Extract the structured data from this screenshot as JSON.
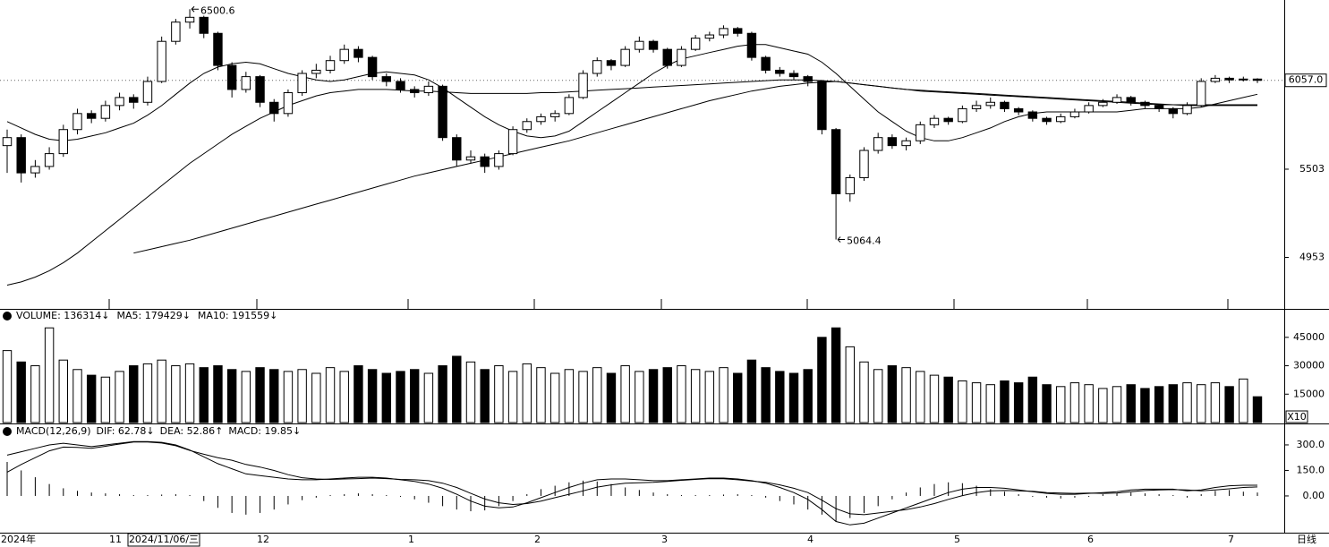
{
  "chart_data": {
    "type": "candlestick",
    "candles": [
      [
        5650,
        5750,
        5480,
        5700
      ],
      [
        5700,
        5720,
        5420,
        5480
      ],
      [
        5480,
        5560,
        5450,
        5520
      ],
      [
        5520,
        5640,
        5500,
        5600
      ],
      [
        5600,
        5780,
        5580,
        5750
      ],
      [
        5750,
        5880,
        5720,
        5850
      ],
      [
        5850,
        5870,
        5790,
        5820
      ],
      [
        5820,
        5930,
        5800,
        5900
      ],
      [
        5900,
        5980,
        5870,
        5950
      ],
      [
        5950,
        5970,
        5880,
        5920
      ],
      [
        5920,
        6080,
        5900,
        6050
      ],
      [
        6050,
        6330,
        6040,
        6300
      ],
      [
        6300,
        6440,
        6280,
        6420
      ],
      [
        6420,
        6500.6,
        6380,
        6450
      ],
      [
        6450,
        6460,
        6320,
        6350
      ],
      [
        6350,
        6360,
        6120,
        6150
      ],
      [
        6150,
        6170,
        5950,
        6000
      ],
      [
        6000,
        6110,
        5980,
        6080
      ],
      [
        6080,
        6090,
        5890,
        5920
      ],
      [
        5920,
        5940,
        5800,
        5850
      ],
      [
        5850,
        6000,
        5830,
        5980
      ],
      [
        5980,
        6120,
        5960,
        6100
      ],
      [
        6100,
        6160,
        6070,
        6120
      ],
      [
        6120,
        6210,
        6100,
        6180
      ],
      [
        6180,
        6280,
        6160,
        6250
      ],
      [
        6250,
        6270,
        6170,
        6200
      ],
      [
        6200,
        6210,
        6060,
        6080
      ],
      [
        6080,
        6100,
        6020,
        6050
      ],
      [
        6050,
        6070,
        5980,
        6000
      ],
      [
        6000,
        6020,
        5950,
        5980
      ],
      [
        5980,
        6050,
        5960,
        6020
      ],
      [
        6020,
        6030,
        5680,
        5700
      ],
      [
        5700,
        5720,
        5520,
        5560
      ],
      [
        5560,
        5620,
        5540,
        5580
      ],
      [
        5580,
        5600,
        5480,
        5520
      ],
      [
        5520,
        5620,
        5500,
        5600
      ],
      [
        5600,
        5770,
        5590,
        5750
      ],
      [
        5750,
        5820,
        5730,
        5800
      ],
      [
        5800,
        5850,
        5780,
        5830
      ],
      [
        5830,
        5870,
        5800,
        5850
      ],
      [
        5850,
        5970,
        5840,
        5950
      ],
      [
        5950,
        6120,
        5940,
        6100
      ],
      [
        6100,
        6200,
        6080,
        6180
      ],
      [
        6180,
        6190,
        6120,
        6150
      ],
      [
        6150,
        6270,
        6140,
        6250
      ],
      [
        6250,
        6330,
        6230,
        6300
      ],
      [
        6300,
        6310,
        6230,
        6250
      ],
      [
        6250,
        6260,
        6130,
        6150
      ],
      [
        6150,
        6270,
        6140,
        6250
      ],
      [
        6250,
        6340,
        6240,
        6320
      ],
      [
        6320,
        6360,
        6300,
        6340
      ],
      [
        6340,
        6400,
        6320,
        6380
      ],
      [
        6380,
        6390,
        6330,
        6350
      ],
      [
        6350,
        6360,
        6180,
        6200
      ],
      [
        6200,
        6210,
        6100,
        6120
      ],
      [
        6120,
        6140,
        6080,
        6100
      ],
      [
        6100,
        6120,
        6060,
        6080
      ],
      [
        6080,
        6090,
        6020,
        6050
      ],
      [
        6050,
        6060,
        5720,
        5750
      ],
      [
        5750,
        5760,
        5064.4,
        5350
      ],
      [
        5350,
        5470,
        5300,
        5450
      ],
      [
        5450,
        5640,
        5430,
        5620
      ],
      [
        5620,
        5730,
        5600,
        5700
      ],
      [
        5700,
        5720,
        5630,
        5650
      ],
      [
        5650,
        5700,
        5620,
        5680
      ],
      [
        5680,
        5800,
        5660,
        5780
      ],
      [
        5780,
        5840,
        5760,
        5820
      ],
      [
        5820,
        5830,
        5780,
        5800
      ],
      [
        5800,
        5900,
        5790,
        5880
      ],
      [
        5880,
        5930,
        5860,
        5900
      ],
      [
        5900,
        5950,
        5880,
        5920
      ],
      [
        5920,
        5930,
        5860,
        5880
      ],
      [
        5880,
        5890,
        5840,
        5860
      ],
      [
        5860,
        5870,
        5800,
        5820
      ],
      [
        5820,
        5830,
        5780,
        5800
      ],
      [
        5800,
        5850,
        5790,
        5830
      ],
      [
        5830,
        5880,
        5820,
        5860
      ],
      [
        5860,
        5920,
        5850,
        5900
      ],
      [
        5900,
        5940,
        5890,
        5920
      ],
      [
        5920,
        5970,
        5910,
        5950
      ],
      [
        5950,
        5960,
        5900,
        5920
      ],
      [
        5920,
        5930,
        5880,
        5900
      ],
      [
        5900,
        5910,
        5860,
        5880
      ],
      [
        5880,
        5890,
        5820,
        5850
      ],
      [
        5850,
        5920,
        5840,
        5900
      ],
      [
        5900,
        6070,
        5890,
        6050
      ],
      [
        6050,
        6090,
        6040,
        6070
      ],
      [
        6070,
        6080,
        6040,
        6060
      ],
      [
        6060,
        6080,
        6050,
        6065
      ],
      [
        6065,
        6070,
        6040,
        6057
      ]
    ],
    "ma_lines": [
      {
        "values": [
          5800,
          5760,
          5720,
          5690,
          5680,
          5690,
          5710,
          5730,
          5760,
          5790,
          5840,
          5900,
          5970,
          6040,
          6100,
          6140,
          6160,
          6170,
          6160,
          6130,
          6100,
          6080,
          6060,
          6050,
          6060,
          6080,
          6100,
          6110,
          6100,
          6090,
          6060,
          6010,
          5950,
          5890,
          5830,
          5780,
          5740,
          5710,
          5700,
          5710,
          5740,
          5800,
          5860,
          5920,
          5980,
          6040,
          6100,
          6150,
          6190,
          6210,
          6230,
          6250,
          6270,
          6280,
          6280,
          6260,
          6240,
          6220,
          6170,
          6100,
          6020,
          5940,
          5860,
          5800,
          5740,
          5700,
          5680,
          5680,
          5700,
          5730,
          5760,
          5800,
          5830,
          5850,
          5860,
          5860,
          5860,
          5860,
          5860,
          5860,
          5870,
          5880,
          5880,
          5880,
          5880,
          5890,
          5910,
          5930,
          5950,
          5970
        ]
      },
      {
        "values": [
          4780,
          4800,
          4830,
          4870,
          4920,
          4980,
          5050,
          5120,
          5190,
          5260,
          5330,
          5400,
          5470,
          5540,
          5600,
          5660,
          5720,
          5770,
          5820,
          5860,
          5900,
          5930,
          5960,
          5980,
          5990,
          6000,
          6000,
          6000,
          5995,
          5990,
          5990,
          5985,
          5980,
          5975,
          5975,
          5975,
          5975,
          5975,
          5980,
          5980,
          5985,
          5990,
          5995,
          6000,
          6005,
          6010,
          6015,
          6020,
          6025,
          6030,
          6035,
          6040,
          6045,
          6050,
          6055,
          6060,
          6060,
          6060,
          6055,
          6050,
          6040,
          6030,
          6020,
          6010,
          6000,
          5990,
          5985,
          5980,
          5975,
          5970,
          5965,
          5960,
          5955,
          5950,
          5945,
          5940,
          5935,
          5930,
          5925,
          5920,
          5915,
          5910,
          5905,
          5905,
          5905,
          5905,
          5905,
          5905,
          5905,
          5905
        ]
      },
      {
        "values": [
          null,
          null,
          null,
          null,
          null,
          null,
          null,
          null,
          null,
          4980,
          5000,
          5020,
          5040,
          5060,
          5085,
          5110,
          5135,
          5160,
          5185,
          5210,
          5235,
          5260,
          5285,
          5310,
          5335,
          5360,
          5385,
          5410,
          5435,
          5460,
          5480,
          5500,
          5520,
          5540,
          5560,
          5580,
          5600,
          5620,
          5640,
          5660,
          5680,
          5705,
          5730,
          5755,
          5780,
          5805,
          5830,
          5855,
          5880,
          5905,
          5930,
          5950,
          5970,
          5990,
          6005,
          6020,
          6030,
          6040,
          6045,
          6050,
          6040,
          6030,
          6020,
          6010,
          6000,
          5995,
          5990,
          5985,
          5980,
          5975,
          5970,
          5965,
          5960,
          5955,
          5950,
          5945,
          5940,
          5935,
          5930,
          5925,
          5920,
          5915,
          5910,
          5905,
          5900,
          5900,
          5900,
          5900,
          5900,
          5900
        ]
      }
    ],
    "ylim": [
      4660,
      6530
    ],
    "yticks": [
      5503,
      4953
    ],
    "last_price": {
      "value": 6057,
      "label": "6057.0"
    },
    "annotations": [
      6500.6,
      5064.4
    ],
    "x_labels": [
      "2024年",
      "11",
      "12",
      "1",
      "2",
      "3",
      "4",
      "5",
      "6",
      "7"
    ],
    "cursor_label": "2024/11/06/三",
    "period_label": "日线",
    "volume": {
      "header": [
        "VOLUME: 136314↓",
        "MA5: 179429↓",
        "MA10: 191559↓"
      ],
      "unit_label": "X10",
      "values": [
        38000,
        32000,
        30000,
        50000,
        33000,
        28000,
        25000,
        24000,
        27000,
        30000,
        31000,
        33000,
        30000,
        31000,
        29000,
        30000,
        28000,
        27000,
        29000,
        28000,
        27000,
        28000,
        26000,
        29000,
        27000,
        30000,
        28000,
        26000,
        27000,
        28000,
        26000,
        30000,
        35000,
        32000,
        28000,
        30000,
        27000,
        31000,
        29000,
        26000,
        28000,
        27000,
        29000,
        26000,
        30000,
        27000,
        28000,
        29000,
        30000,
        28000,
        27000,
        29000,
        26000,
        33000,
        29000,
        27000,
        26000,
        28000,
        45000,
        50000,
        40000,
        32000,
        28000,
        30000,
        29000,
        27000,
        25000,
        24000,
        22000,
        21000,
        20000,
        22000,
        21000,
        24000,
        20000,
        19000,
        21000,
        20000,
        18000,
        19000,
        20000,
        18000,
        19000,
        20000,
        21000,
        20000,
        21000,
        19000,
        23000,
        13631.4
      ],
      "ylim": [
        0,
        52000
      ],
      "yticks": [
        15000,
        30000,
        45000
      ]
    },
    "macd": {
      "header": [
        "MACD(12,26,9)",
        "DIF: 62.78↓",
        "DEA: 52.86↑",
        "MACD: 19.85↓"
      ],
      "hist": [
        200,
        150,
        110,
        70,
        45,
        30,
        20,
        15,
        10,
        5,
        5,
        8,
        10,
        5,
        -30,
        -70,
        -100,
        -110,
        -100,
        -80,
        -50,
        -25,
        -10,
        5,
        10,
        15,
        10,
        5,
        -5,
        -20,
        -40,
        -60,
        -80,
        -90,
        -85,
        -60,
        -30,
        10,
        40,
        60,
        80,
        90,
        85,
        70,
        50,
        35,
        20,
        10,
        5,
        5,
        5,
        8,
        10,
        5,
        -10,
        -30,
        -50,
        -80,
        -110,
        -150,
        -130,
        -100,
        -60,
        -20,
        20,
        50,
        70,
        80,
        75,
        60,
        40,
        25,
        10,
        -5,
        -10,
        -15,
        -10,
        -5,
        10,
        15,
        20,
        15,
        10,
        5,
        -10,
        10,
        30,
        35,
        25,
        19.85
      ],
      "dif": [
        240,
        260,
        280,
        300,
        310,
        300,
        290,
        300,
        310,
        320,
        320,
        315,
        300,
        270,
        230,
        190,
        160,
        130,
        120,
        110,
        100,
        95,
        95,
        100,
        105,
        110,
        110,
        105,
        95,
        85,
        70,
        45,
        10,
        -30,
        -60,
        -70,
        -65,
        -40,
        -10,
        20,
        50,
        75,
        95,
        100,
        100,
        95,
        90,
        90,
        95,
        100,
        105,
        105,
        100,
        90,
        75,
        50,
        20,
        -20,
        -80,
        -150,
        -170,
        -160,
        -130,
        -100,
        -70,
        -40,
        -10,
        20,
        40,
        50,
        50,
        45,
        35,
        25,
        15,
        10,
        10,
        15,
        20,
        25,
        35,
        40,
        40,
        40,
        30,
        35,
        50,
        60,
        63,
        62.78
      ],
      "dea": [
        140,
        185,
        225,
        265,
        287,
        285,
        280,
        292,
        305,
        317,
        317,
        311,
        295,
        267,
        245,
        225,
        210,
        185,
        170,
        150,
        125,
        107,
        100,
        97,
        100,
        102,
        105,
        102,
        97,
        95,
        90,
        75,
        50,
        15,
        -18,
        -40,
        -50,
        -45,
        -30,
        -10,
        10,
        30,
        52,
        65,
        75,
        77,
        80,
        85,
        92,
        97,
        102,
        101,
        95,
        87,
        80,
        65,
        45,
        20,
        -25,
        -75,
        -105,
        -110,
        -100,
        -90,
        -80,
        -65,
        -45,
        -20,
        2,
        20,
        30,
        32,
        30,
        27,
        20,
        17,
        15,
        17,
        15,
        17,
        25,
        32,
        35,
        37,
        35,
        30,
        35,
        42,
        50,
        52.86
      ],
      "ylim": [
        -216,
        405
      ],
      "yticks": [
        {
          "value": 300,
          "label": "300.0"
        },
        {
          "value": 150,
          "label": "150.0"
        },
        {
          "value": 0,
          "label": "0.00"
        }
      ]
    }
  }
}
